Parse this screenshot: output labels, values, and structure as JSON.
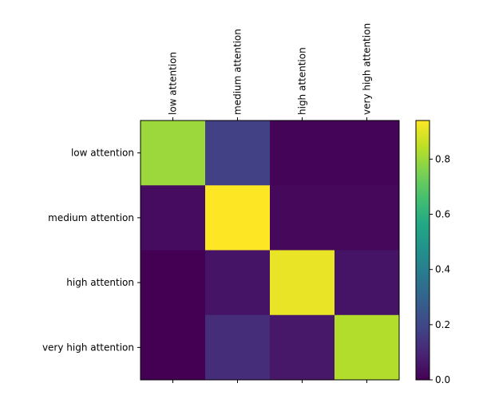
{
  "chart_data": {
    "type": "heatmap",
    "title": "",
    "x_categories": [
      "low attention",
      "medium attention",
      "high attention",
      "very high attention"
    ],
    "y_categories": [
      "low attention",
      "medium attention",
      "high attention",
      "very high attention"
    ],
    "x_tick_position": "top",
    "values": [
      [
        0.8,
        0.18,
        0.01,
        0.01
      ],
      [
        0.03,
        0.94,
        0.02,
        0.02
      ],
      [
        0.0,
        0.05,
        0.91,
        0.05
      ],
      [
        0.0,
        0.12,
        0.06,
        0.83
      ]
    ],
    "vmin": 0.0,
    "vmax": 0.94,
    "colormap": "viridis",
    "colorbar": {
      "ticks": [
        0.0,
        0.2,
        0.4,
        0.6,
        0.8
      ],
      "tick_labels": [
        "0.0",
        "0.2",
        "0.4",
        "0.6",
        "0.8"
      ]
    },
    "grid": false,
    "legend": "colorbar-right"
  }
}
